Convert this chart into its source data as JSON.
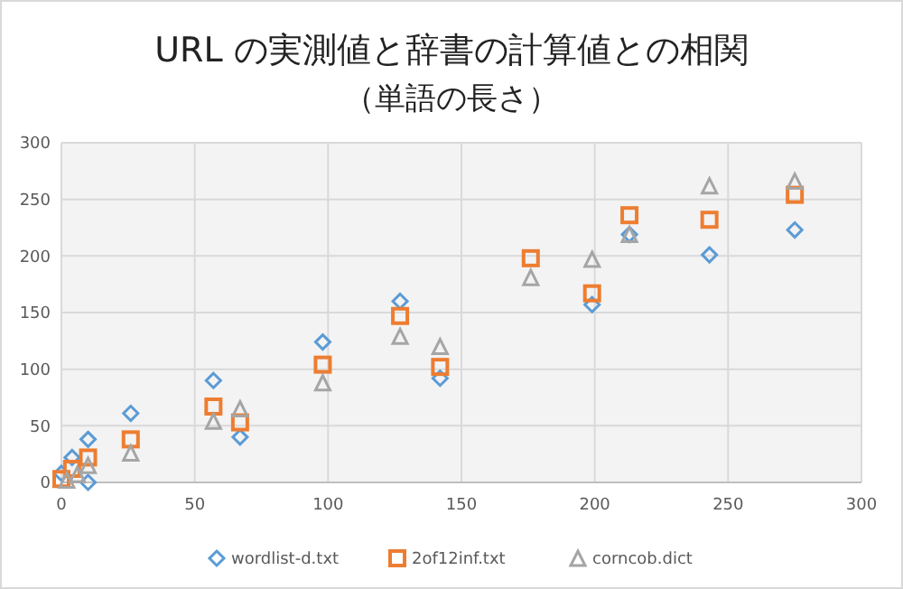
{
  "chart_data": {
    "type": "scatter",
    "title": "URL の実測値と辞書の計算値との相関",
    "subtitle": "（単語の長さ）",
    "xlim": [
      0,
      300
    ],
    "xticks": [
      0,
      50,
      100,
      150,
      200,
      250,
      300
    ],
    "ylim": [
      0,
      300
    ],
    "yticks": [
      0,
      50,
      100,
      150,
      200,
      250,
      300
    ],
    "grid": true,
    "legend": "bottom",
    "series": [
      {
        "name": "wordlist-d.txt",
        "color": "#5b9bd5",
        "marker": "diamond",
        "x": [
          0,
          4,
          10,
          10,
          26,
          57,
          67,
          98,
          127,
          142,
          199,
          213,
          243,
          275
        ],
        "values": [
          8,
          22,
          38,
          0,
          61,
          90,
          40,
          124,
          160,
          92,
          157,
          219,
          201,
          223
        ]
      },
      {
        "name": "2of12inf.txt",
        "color": "#ed7d31",
        "marker": "square",
        "x": [
          0,
          4,
          10,
          26,
          57,
          67,
          98,
          127,
          142,
          176,
          199,
          213,
          243,
          275
        ],
        "values": [
          3,
          12,
          22,
          38,
          67,
          53,
          104,
          147,
          102,
          198,
          167,
          236,
          232,
          254
        ]
      },
      {
        "name": "corncob.dict",
        "color": "#a5a5a5",
        "marker": "triangle",
        "x": [
          2,
          6,
          10,
          26,
          57,
          67,
          98,
          127,
          142,
          176,
          199,
          213,
          243,
          275
        ],
        "values": [
          2,
          7,
          15,
          26,
          54,
          65,
          88,
          129,
          120,
          181,
          197,
          219,
          262,
          266
        ]
      }
    ]
  }
}
